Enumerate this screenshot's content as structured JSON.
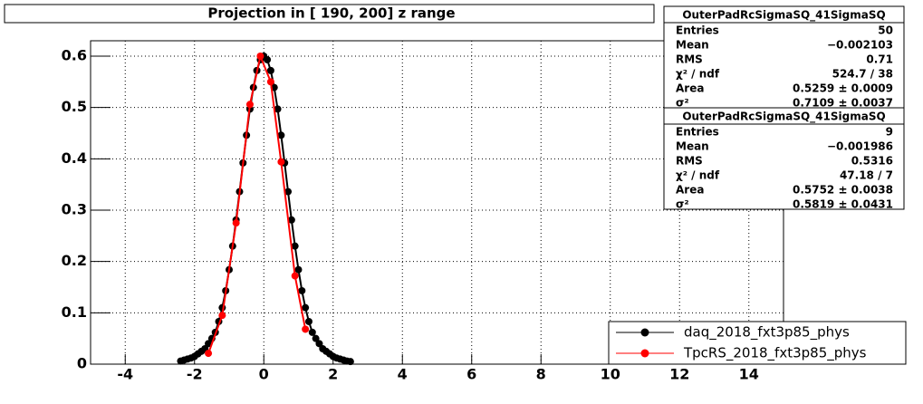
{
  "chart_data": {
    "type": "line",
    "title": "Projection in [ 190, 200] z range",
    "xlim": [
      -5,
      15
    ],
    "xticks": [
      -4,
      -2,
      0,
      2,
      4,
      6,
      8,
      10,
      12,
      14
    ],
    "ylim": [
      0,
      0.63
    ],
    "yticks": [
      0,
      0.1,
      0.2,
      0.3,
      0.4,
      0.5,
      0.6
    ],
    "grid": true,
    "series": [
      {
        "name": "daq_2018_fxt3p85_phys",
        "color": "#000000",
        "x": [
          -2.4,
          -2.3,
          -2.2,
          -2.1,
          -2.0,
          -1.9,
          -1.8,
          -1.7,
          -1.6,
          -1.5,
          -1.4,
          -1.3,
          -1.2,
          -1.1,
          -1.0,
          -0.9,
          -0.8,
          -0.7,
          -0.6,
          -0.5,
          -0.4,
          -0.3,
          -0.2,
          -0.1,
          0.0,
          0.1,
          0.2,
          0.3,
          0.4,
          0.5,
          0.6,
          0.7,
          0.8,
          0.9,
          1.0,
          1.1,
          1.2,
          1.3,
          1.4,
          1.5,
          1.6,
          1.7,
          1.8,
          1.9,
          2.0,
          2.1,
          2.2,
          2.3,
          2.4,
          2.5
        ],
        "values": [
          0.006,
          0.008,
          0.01,
          0.012,
          0.015,
          0.02,
          0.025,
          0.03,
          0.04,
          0.05,
          0.062,
          0.083,
          0.11,
          0.143,
          0.184,
          0.23,
          0.281,
          0.336,
          0.392,
          0.446,
          0.497,
          0.539,
          0.572,
          0.593,
          0.6,
          0.593,
          0.572,
          0.539,
          0.497,
          0.446,
          0.392,
          0.336,
          0.281,
          0.23,
          0.184,
          0.143,
          0.11,
          0.083,
          0.062,
          0.05,
          0.04,
          0.03,
          0.025,
          0.02,
          0.015,
          0.012,
          0.01,
          0.008,
          0.006,
          0.005
        ]
      },
      {
        "name": "TpcRS_2018_fxt3p85_phys",
        "color": "#ff0000",
        "x": [
          -1.6,
          -1.2,
          -0.8,
          -0.4,
          -0.1,
          0.2,
          0.5,
          0.9,
          1.2
        ],
        "values": [
          0.021,
          0.095,
          0.275,
          0.506,
          0.6,
          0.55,
          0.394,
          0.172,
          0.068
        ]
      }
    ],
    "stats": [
      {
        "title": "OuterPadRcSigmaSQ_41SigmaSQ",
        "rows": [
          [
            "Entries",
            "50"
          ],
          [
            "Mean",
            "−0.002103"
          ],
          [
            "RMS",
            "0.71"
          ],
          [
            "χ² / ndf",
            "524.7 / 38"
          ],
          [
            "Area",
            "0.5259 ± 0.0009"
          ],
          [
            "σ²",
            "0.7109 ± 0.0037"
          ]
        ]
      },
      {
        "title": "OuterPadRcSigmaSQ_41SigmaSQ",
        "rows": [
          [
            "Entries",
            "9"
          ],
          [
            "Mean",
            "−0.001986"
          ],
          [
            "RMS",
            "0.5316"
          ],
          [
            "χ² / ndf",
            "47.18 / 7"
          ],
          [
            "Area",
            "0.5752 ± 0.0038"
          ],
          [
            "σ²",
            "0.5819 ± 0.0431"
          ]
        ]
      }
    ]
  }
}
